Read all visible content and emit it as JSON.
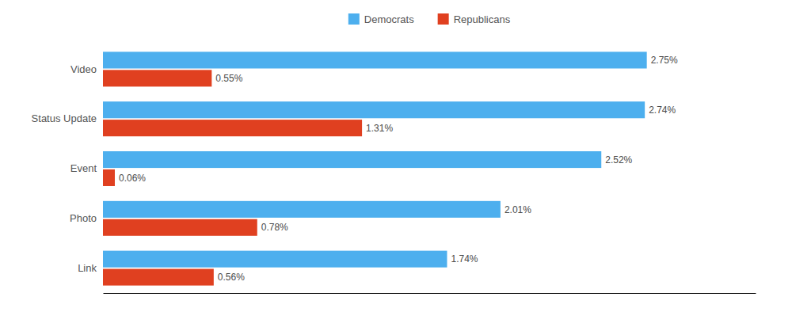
{
  "chart_data": {
    "type": "bar",
    "orientation": "horizontal",
    "categories": [
      "Video",
      "Status Update",
      "Event",
      "Photo",
      "Link"
    ],
    "series": [
      {
        "name": "Democrats",
        "color": "#4DAFEE",
        "values": [
          2.75,
          2.74,
          2.52,
          2.01,
          1.74
        ],
        "value_labels": [
          "2.75%",
          "2.74%",
          "2.52%",
          "2.01%",
          "1.74%"
        ]
      },
      {
        "name": "Republicans",
        "color": "#E04020",
        "values": [
          0.55,
          1.31,
          0.06,
          0.78,
          0.56
        ],
        "value_labels": [
          "0.55%",
          "1.31%",
          "0.06%",
          "0.78%",
          "0.56%"
        ]
      }
    ],
    "xlim": [
      0,
      3.3
    ],
    "data_labels": true,
    "tick_labels": "y",
    "legend": "top",
    "grid": false
  }
}
